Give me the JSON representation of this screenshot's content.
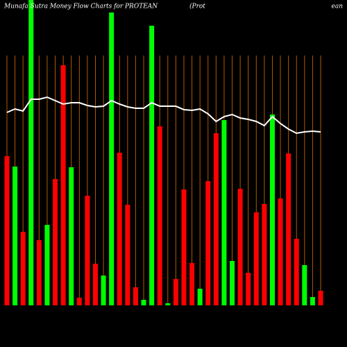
{
  "chart_data": {
    "type": "bar",
    "title": "Munafa Sutra  Money Flow  Charts for PROTEAN",
    "title_middle": "(Prot",
    "title_right": "ean",
    "ylim": [
      0,
      440
    ],
    "series": [
      {
        "type": "bar",
        "colors": [
          "#ff0000",
          "#00ff00",
          "#ff0000",
          "#00ff00",
          "#ff0000",
          "#00ff00",
          "#ff0000",
          "#ff0000",
          "#00ff00",
          "#ff0000",
          "#ff0000",
          "#ff0000",
          "#00ff00",
          "#00ff00",
          "#ff0000",
          "#ff0000",
          "#ff0000",
          "#00ff00",
          "#00ff00",
          "#ff0000",
          "#00ff00",
          "#ff0000",
          "#ff0000",
          "#ff0000",
          "#00ff00",
          "#ff0000",
          "#ff0000",
          "#00ff00",
          "#00ff00",
          "#ff0000",
          "#ff0000",
          "#ff0000",
          "#ff0000",
          "#00ff00",
          "#ff0000",
          "#ff0000",
          "#ff0000",
          "#00ff00",
          "#00ff00",
          "#ff0000"
        ],
        "values": [
          215,
          200,
          106,
          440,
          94,
          116,
          182,
          346,
          199,
          11,
          158,
          60,
          43,
          422,
          220,
          145,
          26,
          8,
          403,
          258,
          3,
          38,
          167,
          61,
          24,
          179,
          248,
          267,
          64,
          168,
          47,
          134,
          146,
          275,
          154,
          219,
          96,
          58,
          12,
          21
        ]
      },
      {
        "type": "line",
        "color": "#ffffff",
        "values": [
          278,
          283,
          280,
          297,
          297,
          300,
          295,
          290,
          292,
          292,
          288,
          286,
          287,
          295,
          290,
          286,
          284,
          284,
          292,
          287,
          287,
          287,
          282,
          281,
          283,
          276,
          265,
          272,
          275,
          270,
          268,
          265,
          259,
          272,
          262,
          254,
          248,
          250,
          251,
          250
        ]
      }
    ]
  }
}
